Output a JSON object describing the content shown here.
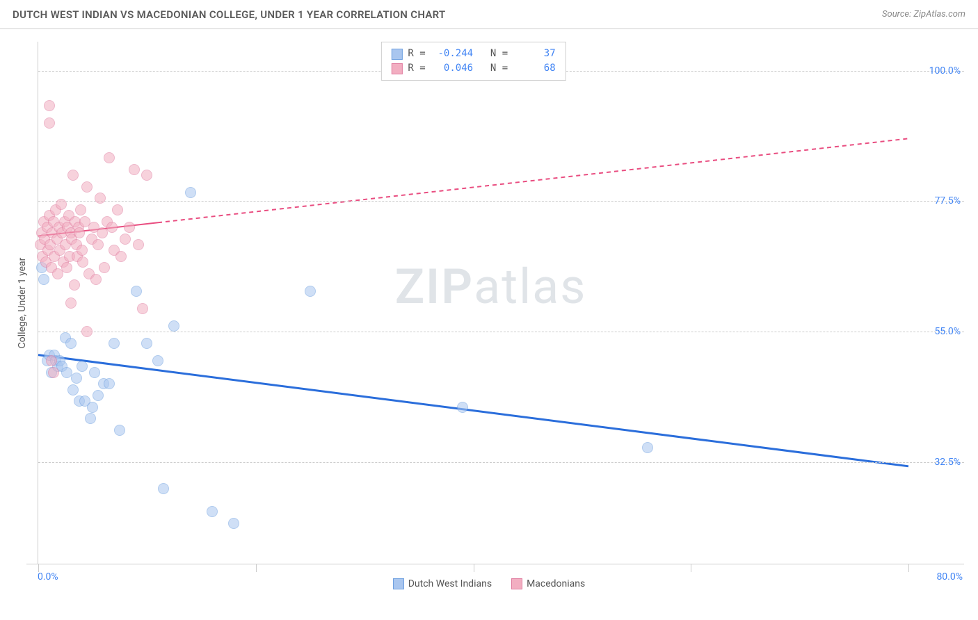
{
  "header": {
    "title": "DUTCH WEST INDIAN VS MACEDONIAN COLLEGE, UNDER 1 YEAR CORRELATION CHART",
    "source": "Source: ZipAtlas.com"
  },
  "chart": {
    "type": "scatter",
    "ylabel": "College, Under 1 year",
    "xlim": [
      0,
      80
    ],
    "ylim": [
      15,
      105
    ],
    "xtick_labels": {
      "min": "0.0%",
      "max": "80.0%"
    },
    "ytick_positions": [
      32.5,
      55.0,
      77.5,
      100.0
    ],
    "ytick_labels": [
      "32.5%",
      "55.0%",
      "77.5%",
      "100.0%"
    ],
    "background_color": "#ffffff",
    "grid_color": "#cccccc",
    "axis_color": "#cccccc",
    "ylabel_color": "#555555",
    "tick_label_color": "#4285f4",
    "label_fontsize": 14,
    "title_fontsize": 15,
    "marker_size": 16,
    "watermark": {
      "text_bold": "ZIP",
      "text_light": "atlas"
    },
    "series": [
      {
        "name": "Dutch West Indians",
        "fill_color": "#a9c6ef",
        "stroke_color": "#6fa0e0",
        "R": "-0.244",
        "N": "37",
        "trend": {
          "slope": -0.24,
          "intercept": 51.0,
          "line_color": "#2b6edb",
          "line_width": 3,
          "xsolid_max": 80
        },
        "points": [
          [
            0.3,
            66
          ],
          [
            0.5,
            64
          ],
          [
            0.8,
            50
          ],
          [
            1.0,
            51
          ],
          [
            1.2,
            48
          ],
          [
            1.5,
            51
          ],
          [
            1.6,
            50
          ],
          [
            1.8,
            49
          ],
          [
            2.0,
            50
          ],
          [
            2.2,
            49
          ],
          [
            2.5,
            54
          ],
          [
            2.6,
            48
          ],
          [
            3.0,
            53
          ],
          [
            3.2,
            45
          ],
          [
            3.5,
            47
          ],
          [
            3.8,
            43
          ],
          [
            4.0,
            49
          ],
          [
            4.3,
            43
          ],
          [
            4.8,
            40
          ],
          [
            5.0,
            42
          ],
          [
            5.2,
            48
          ],
          [
            5.5,
            44
          ],
          [
            6.0,
            46
          ],
          [
            6.5,
            46
          ],
          [
            7.0,
            53
          ],
          [
            7.5,
            38
          ],
          [
            9.0,
            62
          ],
          [
            10.0,
            53
          ],
          [
            11.0,
            50
          ],
          [
            11.5,
            28
          ],
          [
            12.5,
            56
          ],
          [
            14.0,
            79
          ],
          [
            16.0,
            24
          ],
          [
            18.0,
            22
          ],
          [
            25.0,
            62
          ],
          [
            39.0,
            42
          ],
          [
            56.0,
            35
          ]
        ]
      },
      {
        "name": "Macedonians",
        "fill_color": "#f2aec1",
        "stroke_color": "#e07da0",
        "R": "0.046",
        "N": "68",
        "trend": {
          "slope": 0.21,
          "intercept": 71.5,
          "line_color": "#e94d80",
          "line_width": 2,
          "xsolid_max": 11
        },
        "points": [
          [
            0.2,
            70
          ],
          [
            0.3,
            72
          ],
          [
            0.4,
            68
          ],
          [
            0.5,
            74
          ],
          [
            0.6,
            71
          ],
          [
            0.7,
            67
          ],
          [
            0.8,
            73
          ],
          [
            0.9,
            69
          ],
          [
            1.0,
            75
          ],
          [
            1.1,
            70
          ],
          [
            1.2,
            66
          ],
          [
            1.3,
            72
          ],
          [
            1.4,
            74
          ],
          [
            1.5,
            68
          ],
          [
            1.6,
            76
          ],
          [
            1.7,
            71
          ],
          [
            1.8,
            65
          ],
          [
            1.9,
            73
          ],
          [
            2.0,
            69
          ],
          [
            2.1,
            77
          ],
          [
            2.2,
            72
          ],
          [
            2.3,
            67
          ],
          [
            2.4,
            74
          ],
          [
            2.5,
            70
          ],
          [
            2.6,
            66
          ],
          [
            2.7,
            73
          ],
          [
            2.8,
            75
          ],
          [
            2.9,
            68
          ],
          [
            3.0,
            72
          ],
          [
            3.1,
            71
          ],
          [
            3.2,
            82
          ],
          [
            3.3,
            63
          ],
          [
            3.4,
            74
          ],
          [
            3.5,
            70
          ],
          [
            3.6,
            68
          ],
          [
            3.7,
            73
          ],
          [
            3.8,
            72
          ],
          [
            3.9,
            76
          ],
          [
            4.0,
            69
          ],
          [
            4.1,
            67
          ],
          [
            4.3,
            74
          ],
          [
            4.5,
            80
          ],
          [
            4.7,
            65
          ],
          [
            4.9,
            71
          ],
          [
            5.1,
            73
          ],
          [
            5.3,
            64
          ],
          [
            5.5,
            70
          ],
          [
            5.7,
            78
          ],
          [
            5.9,
            72
          ],
          [
            6.1,
            66
          ],
          [
            6.3,
            74
          ],
          [
            6.5,
            85
          ],
          [
            6.8,
            73
          ],
          [
            7.0,
            69
          ],
          [
            7.3,
            76
          ],
          [
            7.6,
            68
          ],
          [
            8.0,
            71
          ],
          [
            8.4,
            73
          ],
          [
            8.8,
            83
          ],
          [
            9.2,
            70
          ],
          [
            9.6,
            59
          ],
          [
            10.0,
            82
          ],
          [
            1.0,
            94
          ],
          [
            1.0,
            91
          ],
          [
            1.2,
            50
          ],
          [
            1.4,
            48
          ],
          [
            3.0,
            60
          ],
          [
            4.5,
            55
          ]
        ]
      }
    ]
  }
}
